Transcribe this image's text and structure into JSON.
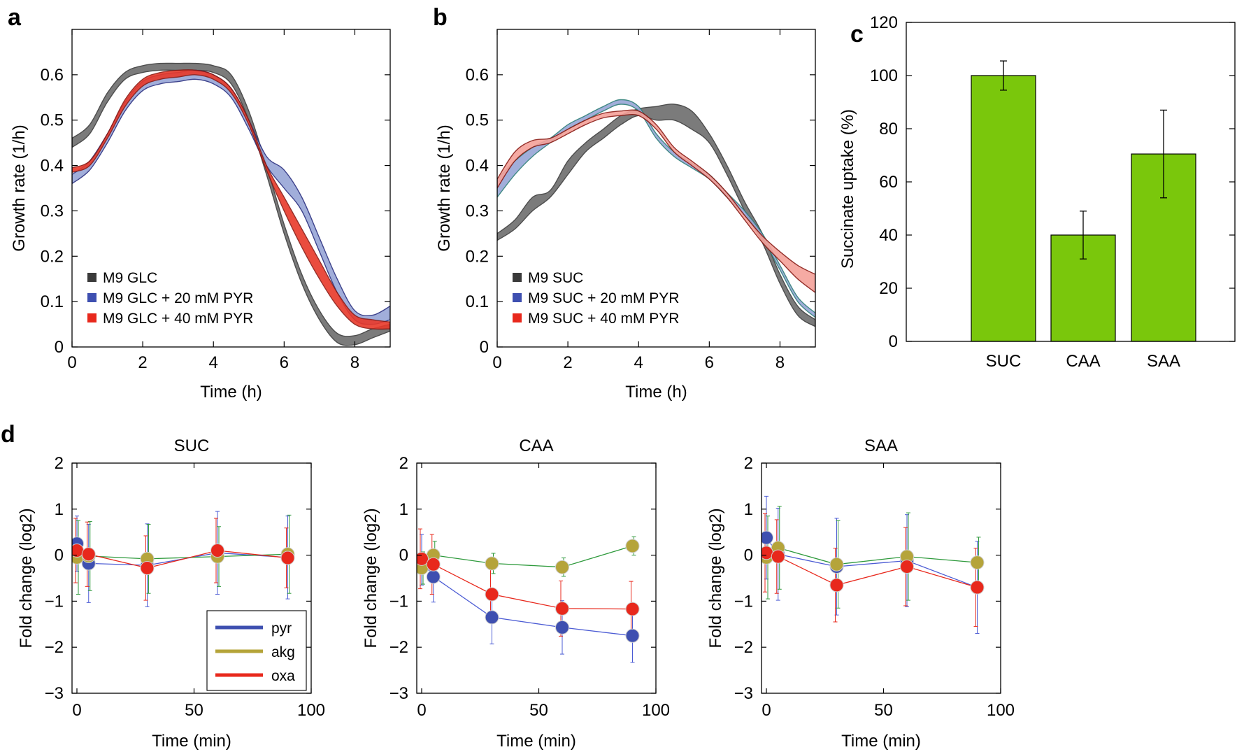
{
  "colors": {
    "black_band": "#3a3a3a",
    "black_band_fill": "#6d6d6d",
    "blue_band": "#2a2f80",
    "blue_band_fill": "#97a6d6",
    "red_band": "#8a1a14",
    "red_band_fill": "#e8392a",
    "salmon_fill": "#f4a19a",
    "teal_line": "#2f7f7a",
    "bar": "#7ac70c",
    "pyr": "#3e4fb0",
    "akg": "#b5a43a",
    "oxa": "#e8281c",
    "pyr_line": "#4b5bd4",
    "akg_line": "#2e9a3c",
    "oxa_line": "#e8281c"
  },
  "chart_data": [
    {
      "id": "a",
      "panel_label": "a",
      "type": "line",
      "xlabel": "Time (h)",
      "ylabel": "Growth rate (1/h)",
      "xlim": [
        0,
        9
      ],
      "ylim": [
        0,
        0.7
      ],
      "xticks": [
        "0",
        "2",
        "4",
        "6",
        "8"
      ],
      "yticks": [
        "0",
        "0.1",
        "0.2",
        "0.3",
        "0.4",
        "0.5",
        "0.6"
      ],
      "legend": [
        "M9 GLC",
        "M9 GLC + 20 mM PYR",
        "M9 GLC + 40 mM PYR"
      ],
      "series": [
        {
          "name": "M9 GLC",
          "color": "black",
          "x": [
            0,
            0.5,
            1,
            1.5,
            2,
            2.5,
            3,
            3.5,
            4,
            4.5,
            5,
            5.5,
            6,
            6.5,
            7,
            7.5,
            8,
            8.5,
            9
          ],
          "lower": [
            0.44,
            0.47,
            0.54,
            0.59,
            0.605,
            0.61,
            0.61,
            0.61,
            0.605,
            0.58,
            0.5,
            0.38,
            0.25,
            0.14,
            0.06,
            0.01,
            0.005,
            0.02,
            0.035
          ],
          "upper": [
            0.46,
            0.49,
            0.56,
            0.605,
            0.62,
            0.625,
            0.625,
            0.625,
            0.62,
            0.6,
            0.52,
            0.4,
            0.27,
            0.16,
            0.08,
            0.03,
            0.025,
            0.04,
            0.05
          ]
        },
        {
          "name": "M9 GLC + 20 mM PYR",
          "color": "blue",
          "x": [
            0,
            0.5,
            1,
            1.5,
            2,
            2.5,
            3,
            3.5,
            4,
            4.5,
            5,
            5.5,
            6,
            6.5,
            7,
            7.5,
            8,
            8.5,
            9
          ],
          "lower": [
            0.36,
            0.39,
            0.45,
            0.52,
            0.565,
            0.58,
            0.585,
            0.59,
            0.58,
            0.55,
            0.48,
            0.4,
            0.35,
            0.3,
            0.21,
            0.12,
            0.06,
            0.05,
            0.06
          ],
          "upper": [
            0.38,
            0.41,
            0.47,
            0.54,
            0.585,
            0.6,
            0.605,
            0.61,
            0.6,
            0.57,
            0.5,
            0.42,
            0.39,
            0.33,
            0.24,
            0.15,
            0.08,
            0.07,
            0.09
          ]
        },
        {
          "name": "M9 GLC + 40 mM PYR",
          "color": "red",
          "x": [
            0,
            0.5,
            1,
            1.5,
            2,
            2.5,
            3,
            3.5,
            4,
            4.5,
            5,
            5.5,
            6,
            6.5,
            7,
            7.5,
            8,
            8.5,
            9
          ],
          "lower": [
            0.385,
            0.4,
            0.46,
            0.53,
            0.575,
            0.59,
            0.595,
            0.6,
            0.59,
            0.56,
            0.49,
            0.39,
            0.3,
            0.22,
            0.15,
            0.09,
            0.05,
            0.04,
            0.04
          ],
          "upper": [
            0.395,
            0.41,
            0.47,
            0.545,
            0.59,
            0.605,
            0.61,
            0.61,
            0.6,
            0.57,
            0.5,
            0.4,
            0.33,
            0.26,
            0.19,
            0.12,
            0.07,
            0.06,
            0.055
          ]
        }
      ]
    },
    {
      "id": "b",
      "panel_label": "b",
      "type": "line",
      "xlabel": "Time (h)",
      "ylabel": "Growth rate (1/h)",
      "xlim": [
        0,
        9
      ],
      "ylim": [
        0,
        0.7
      ],
      "xticks": [
        "0",
        "2",
        "4",
        "6",
        "8"
      ],
      "yticks": [
        "0",
        "0.1",
        "0.2",
        "0.3",
        "0.4",
        "0.5",
        "0.6"
      ],
      "legend": [
        "M9 SUC",
        "M9 SUC + 20 mM PYR",
        "M9 SUC + 40 mM PYR"
      ],
      "series": [
        {
          "name": "M9 SUC",
          "color": "black",
          "x": [
            0,
            0.5,
            1,
            1.5,
            2,
            2.5,
            3,
            3.5,
            4,
            4.5,
            5,
            5.5,
            6,
            6.5,
            7,
            7.5,
            8,
            8.5,
            9
          ],
          "lower": [
            0.235,
            0.26,
            0.3,
            0.33,
            0.38,
            0.43,
            0.46,
            0.49,
            0.51,
            0.5,
            0.5,
            0.48,
            0.45,
            0.38,
            0.3,
            0.23,
            0.14,
            0.07,
            0.045
          ],
          "upper": [
            0.25,
            0.28,
            0.33,
            0.345,
            0.41,
            0.45,
            0.48,
            0.51,
            0.525,
            0.53,
            0.535,
            0.52,
            0.47,
            0.4,
            0.32,
            0.25,
            0.16,
            0.09,
            0.06
          ]
        },
        {
          "name": "M9 SUC + 20 mM PYR",
          "color": "blue",
          "x": [
            0,
            0.5,
            1,
            1.5,
            2,
            2.5,
            3,
            3.5,
            4,
            4.5,
            5,
            5.5,
            6,
            6.5,
            7,
            7.5,
            8,
            8.5,
            9
          ],
          "lower": [
            0.33,
            0.38,
            0.42,
            0.45,
            0.48,
            0.5,
            0.52,
            0.535,
            0.52,
            0.46,
            0.42,
            0.395,
            0.37,
            0.33,
            0.29,
            0.24,
            0.17,
            0.1,
            0.065
          ],
          "upper": [
            0.37,
            0.41,
            0.44,
            0.46,
            0.49,
            0.51,
            0.53,
            0.545,
            0.53,
            0.47,
            0.43,
            0.405,
            0.38,
            0.34,
            0.3,
            0.25,
            0.18,
            0.11,
            0.075
          ]
        },
        {
          "name": "M9 SUC + 40 mM PYR",
          "color": "red",
          "x": [
            0,
            0.5,
            1,
            1.5,
            2,
            2.5,
            3,
            3.5,
            4,
            4.5,
            5,
            5.5,
            6,
            6.5,
            7,
            7.5,
            8,
            8.5,
            9
          ],
          "lower": [
            0.35,
            0.41,
            0.44,
            0.45,
            0.47,
            0.49,
            0.505,
            0.51,
            0.51,
            0.48,
            0.43,
            0.4,
            0.37,
            0.33,
            0.28,
            0.23,
            0.19,
            0.15,
            0.12
          ],
          "upper": [
            0.37,
            0.43,
            0.455,
            0.46,
            0.48,
            0.5,
            0.515,
            0.52,
            0.52,
            0.49,
            0.44,
            0.41,
            0.38,
            0.34,
            0.29,
            0.245,
            0.21,
            0.18,
            0.16
          ]
        }
      ]
    },
    {
      "id": "c",
      "panel_label": "c",
      "type": "bar",
      "ylabel": "Succinate uptake (%)",
      "ylim": [
        0,
        120
      ],
      "yticks": [
        "0",
        "20",
        "40",
        "60",
        "80",
        "100",
        "120"
      ],
      "categories": [
        "SUC",
        "CAA",
        "SAA"
      ],
      "values": [
        100,
        40,
        70.5
      ],
      "errors": [
        5.5,
        9,
        16.5
      ]
    },
    {
      "id": "d1",
      "panel_label": "d",
      "type": "line",
      "title": "SUC",
      "xlabel": "Time (min)",
      "ylabel": "Fold change (log2)",
      "xlim": [
        0,
        100
      ],
      "ylim": [
        -3,
        2
      ],
      "xticks": [
        "0",
        "50",
        "100"
      ],
      "yticks": [
        "−3",
        "−2",
        "−1",
        "0",
        "1",
        "2"
      ],
      "legend": [
        "pyr",
        "akg",
        "oxa"
      ],
      "x": [
        0,
        5,
        30,
        60,
        90
      ],
      "series": [
        {
          "name": "pyr",
          "values": [
            0.25,
            -0.18,
            -0.22,
            0.05,
            -0.05
          ],
          "errors": [
            0.6,
            0.85,
            0.9,
            0.9,
            0.9
          ]
        },
        {
          "name": "akg",
          "values": [
            -0.05,
            -0.02,
            -0.08,
            -0.03,
            0.02
          ],
          "errors": [
            0.8,
            0.75,
            0.75,
            0.65,
            0.85
          ]
        },
        {
          "name": "oxa",
          "values": [
            0.1,
            0.02,
            -0.28,
            0.1,
            -0.06
          ],
          "errors": [
            0.7,
            0.7,
            0.7,
            0.7,
            0.65
          ]
        }
      ]
    },
    {
      "id": "d2",
      "type": "line",
      "title": "CAA",
      "xlabel": "Time (min)",
      "ylabel": "Fold change (log2)",
      "xlim": [
        0,
        100
      ],
      "ylim": [
        -3,
        2
      ],
      "xticks": [
        "0",
        "50",
        "100"
      ],
      "yticks": [
        "−3",
        "−2",
        "−1",
        "0",
        "1",
        "2"
      ],
      "x": [
        0,
        5,
        30,
        60,
        90
      ],
      "series": [
        {
          "name": "pyr",
          "values": [
            -0.1,
            -0.47,
            -1.35,
            -1.57,
            -1.75
          ],
          "errors": [
            0.55,
            0.55,
            0.58,
            0.58,
            0.58
          ]
        },
        {
          "name": "akg",
          "values": [
            -0.28,
            0.0,
            -0.18,
            -0.26,
            0.2
          ],
          "errors": [
            0.35,
            0.3,
            0.22,
            0.2,
            0.2
          ]
        },
        {
          "name": "oxa",
          "values": [
            -0.08,
            -0.2,
            -0.85,
            -1.16,
            -1.17
          ],
          "errors": [
            0.65,
            0.65,
            0.6,
            0.6,
            0.6
          ]
        }
      ]
    },
    {
      "id": "d3",
      "type": "line",
      "title": "SAA",
      "xlabel": "Time (min)",
      "ylabel": "Fold change (log2)",
      "xlim": [
        0,
        100
      ],
      "ylim": [
        -3,
        2
      ],
      "xticks": [
        "0",
        "50",
        "100"
      ],
      "yticks": [
        "−3",
        "−2",
        "−1",
        "0",
        "1",
        "2"
      ],
      "x": [
        0,
        5,
        30,
        60,
        90
      ],
      "series": [
        {
          "name": "pyr",
          "values": [
            0.38,
            0.02,
            -0.25,
            -0.12,
            -0.7
          ],
          "errors": [
            0.9,
            1.0,
            1.05,
            1.0,
            1.0
          ]
        },
        {
          "name": "akg",
          "values": [
            -0.05,
            0.16,
            -0.2,
            -0.03,
            -0.16
          ],
          "errors": [
            0.9,
            0.9,
            0.95,
            0.95,
            0.55
          ]
        },
        {
          "name": "oxa",
          "values": [
            0.05,
            -0.03,
            -0.65,
            -0.25,
            -0.7
          ],
          "errors": [
            0.85,
            0.8,
            0.8,
            0.85,
            0.85
          ]
        }
      ]
    }
  ]
}
